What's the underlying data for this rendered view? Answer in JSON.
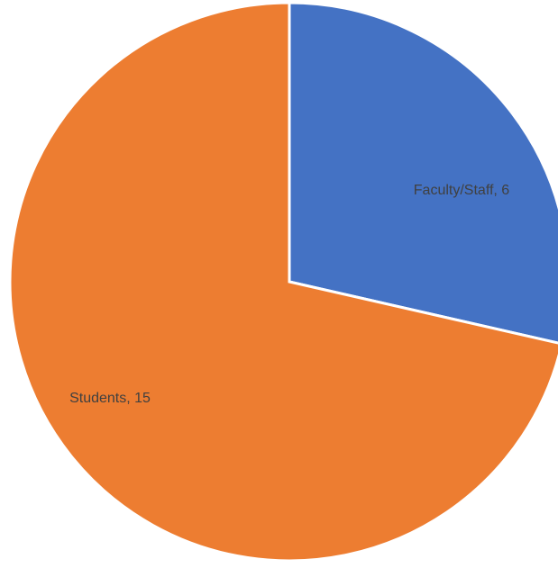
{
  "chart_data": {
    "type": "pie",
    "categories": [
      "Faculty/Staff",
      "Students"
    ],
    "values": [
      6,
      15
    ],
    "colors": [
      "#4472C4",
      "#ED7D31"
    ],
    "slice_border_color": "#FFFFFF",
    "data_labels": [
      "Faculty/Staff, 6",
      "Students, 15"
    ],
    "title": "",
    "legend": "none",
    "start_angle": "12 o'clock, clockwise"
  }
}
